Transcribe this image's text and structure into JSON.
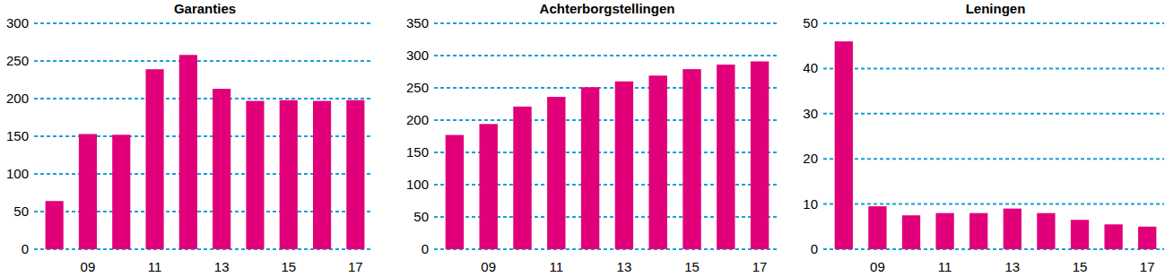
{
  "chart_data": [
    {
      "type": "bar",
      "title": "Garanties",
      "categories": [
        null,
        "09",
        null,
        "11",
        null,
        "13",
        null,
        "15",
        null,
        "17"
      ],
      "values": [
        64,
        153,
        152,
        239,
        258,
        213,
        197,
        198,
        197,
        198
      ],
      "color": "#e2007a",
      "ylim": [
        0,
        300
      ],
      "yticks": [
        0,
        50,
        100,
        150,
        200,
        250,
        300
      ],
      "grid": true
    },
    {
      "type": "bar",
      "title": "Achterborgstellingen",
      "categories": [
        null,
        "09",
        null,
        "11",
        null,
        "13",
        null,
        "15",
        null,
        "17"
      ],
      "values": [
        177,
        194,
        221,
        236,
        251,
        260,
        269,
        279,
        286,
        291
      ],
      "color": "#e2007a",
      "ylim": [
        0,
        350
      ],
      "yticks": [
        0,
        50,
        100,
        150,
        200,
        250,
        300,
        350
      ],
      "grid": true
    },
    {
      "type": "bar",
      "title": "Leningen",
      "categories": [
        null,
        "09",
        null,
        "11",
        null,
        "13",
        null,
        "15",
        null,
        "17"
      ],
      "values": [
        46,
        9.5,
        7.5,
        8,
        8,
        9,
        8,
        6.5,
        5.5,
        5
      ],
      "color": "#e2007a",
      "ylim": [
        0,
        50
      ],
      "yticks": [
        0,
        10,
        20,
        30,
        40,
        50
      ],
      "grid": true
    }
  ]
}
